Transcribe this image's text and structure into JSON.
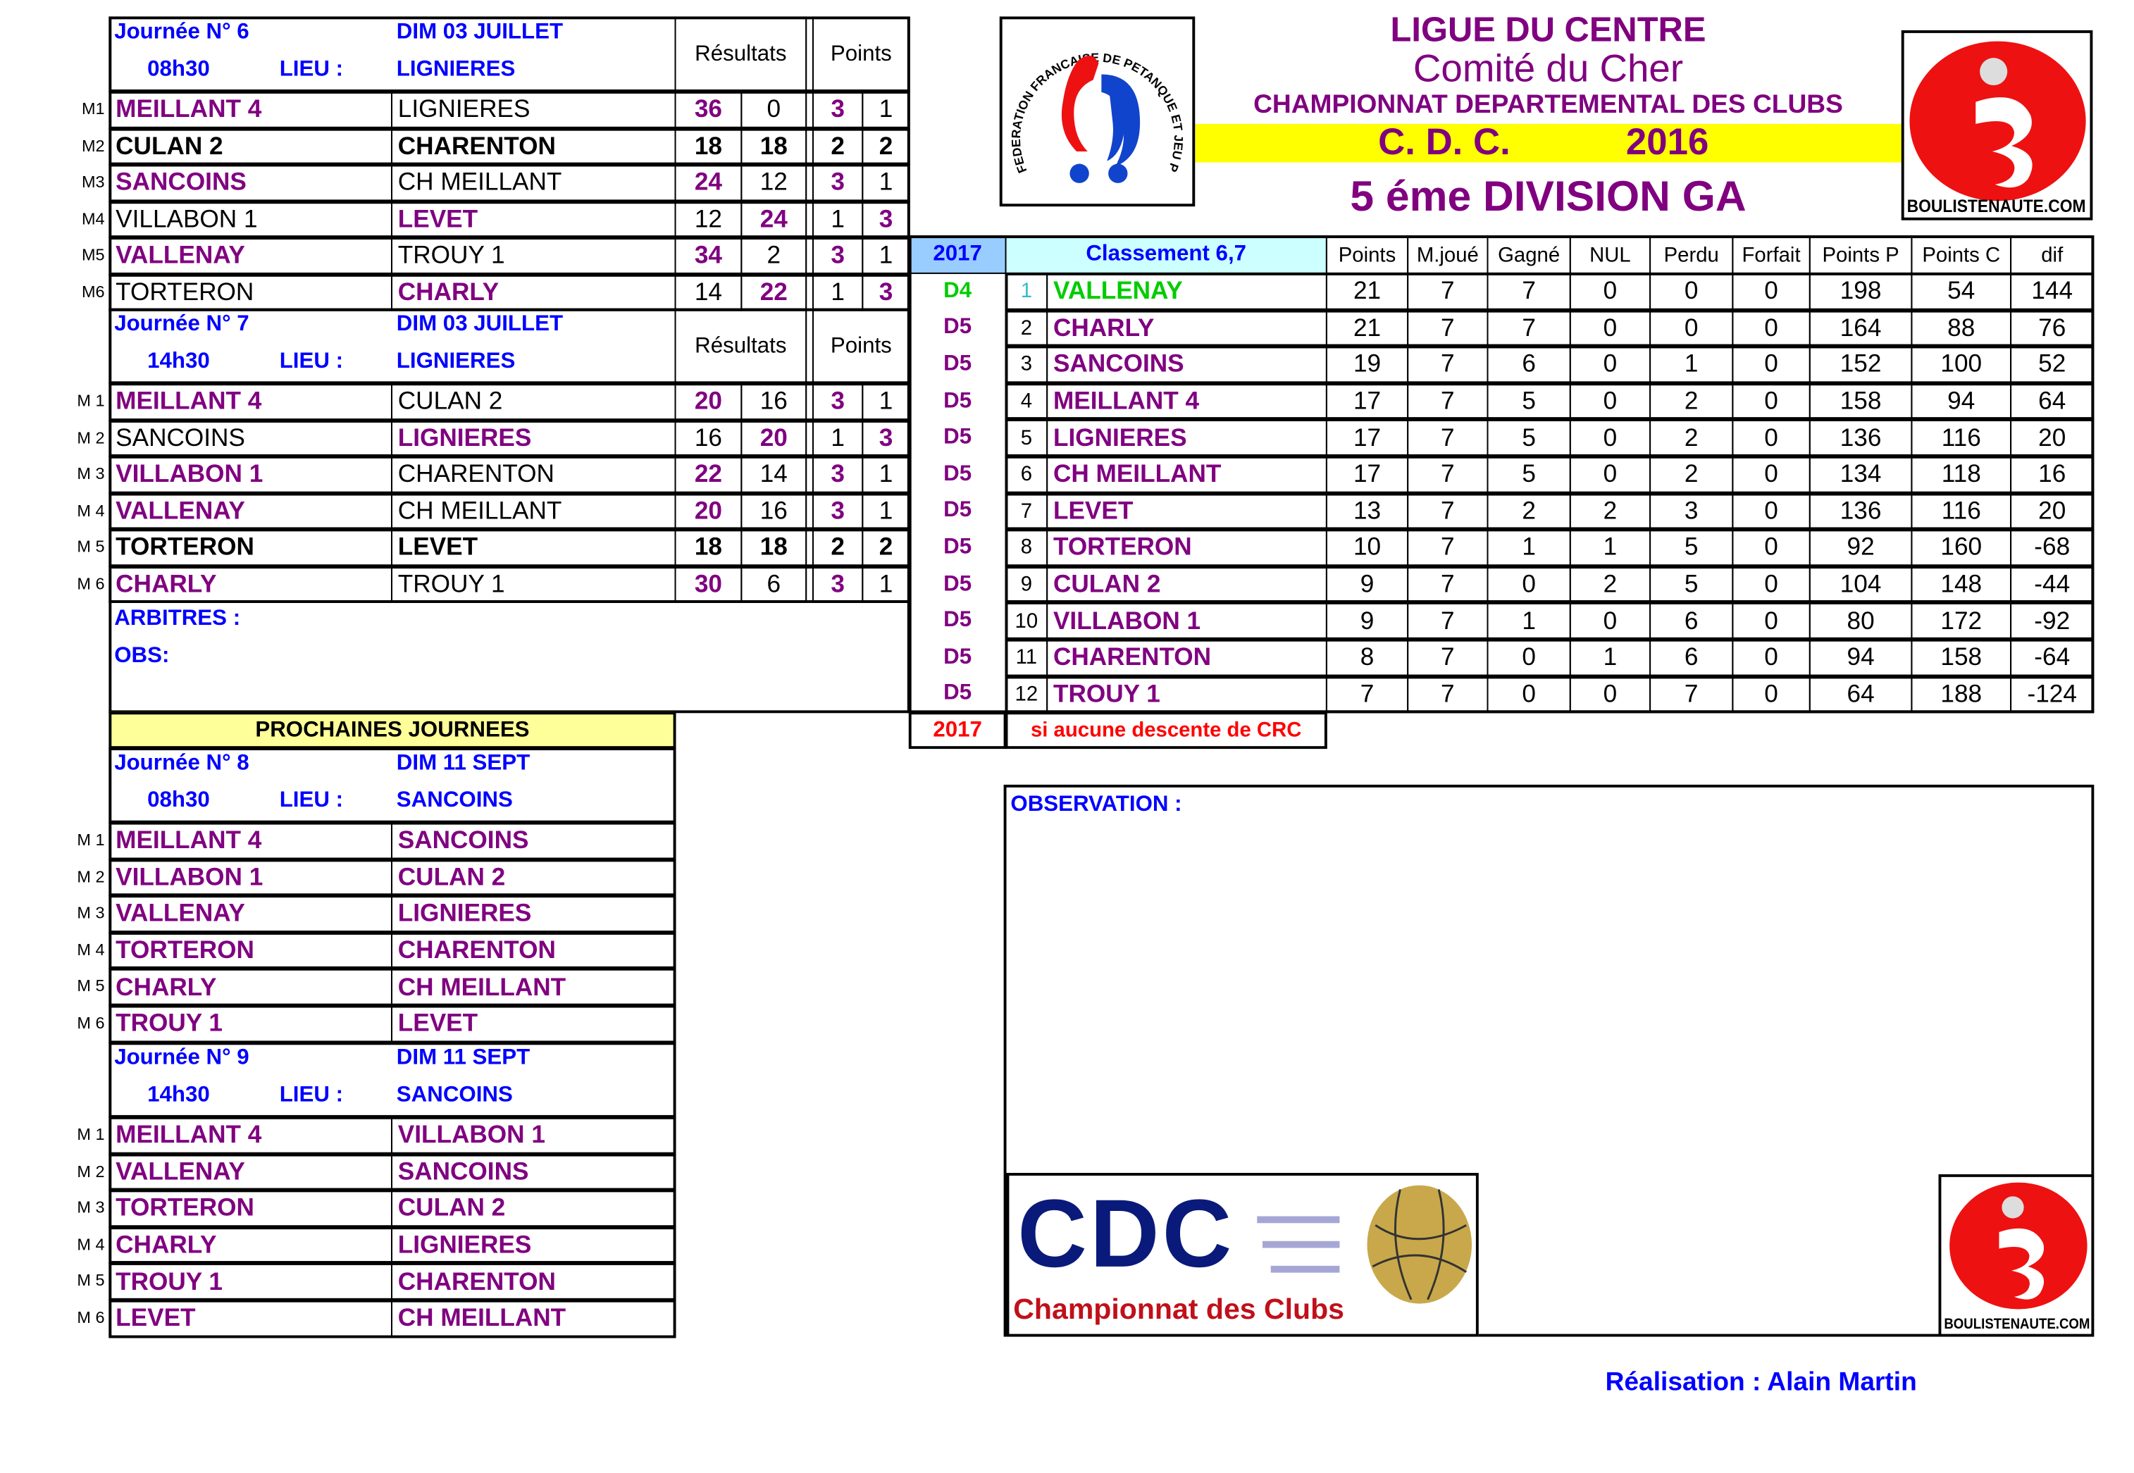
{
  "header": {
    "league": "LIGUE DU CENTRE",
    "committee": "Comité du Cher",
    "championship": "CHAMPIONNAT DEPARTEMENTAL  DES CLUBS",
    "cdc": "C. D. C.",
    "year": "2016",
    "division": "5 éme DIVISION GA",
    "ffpjp_logo_text": "FEDERATION FRANCAISE DE PETANQUE ET JEU PROVENCAL",
    "boulistenaute_logo_text": "BOULISTENAUTE.COM"
  },
  "colors": {
    "purple": "#800080",
    "blue": "#0000ff",
    "green": "#00cc00",
    "red": "#ff0000",
    "yellow": "#ffff00",
    "light_blue": "#99ccff",
    "light_cyan": "#ccffff",
    "light_yellow": "#ffff99"
  },
  "matchdays": [
    {
      "title": "Journée N° 6",
      "date": "DIM 03 JUILLET",
      "time": "08h30",
      "lieu_label": "LIEU :",
      "lieu": "LIGNIERES",
      "results_header": "Résultats",
      "points_header": "Points",
      "matches": [
        {
          "label": "M1",
          "home": "MEILLANT 4",
          "away": "LIGNIERES",
          "score": [
            "36",
            "0"
          ],
          "points": [
            "3",
            "1"
          ],
          "winner": "home"
        },
        {
          "label": "M2",
          "home": "CULAN 2",
          "away": "CHARENTON",
          "score": [
            "18",
            "18"
          ],
          "points": [
            "2",
            "2"
          ],
          "winner": "draw"
        },
        {
          "label": "M3",
          "home": "SANCOINS",
          "away": "CH MEILLANT",
          "score": [
            "24",
            "12"
          ],
          "points": [
            "3",
            "1"
          ],
          "winner": "home"
        },
        {
          "label": "M4",
          "home": "VILLABON 1",
          "away": "LEVET",
          "score": [
            "12",
            "24"
          ],
          "points": [
            "1",
            "3"
          ],
          "winner": "away"
        },
        {
          "label": "M5",
          "home": "VALLENAY",
          "away": "TROUY 1",
          "score": [
            "34",
            "2"
          ],
          "points": [
            "3",
            "1"
          ],
          "winner": "home"
        },
        {
          "label": "M6",
          "home": "TORTERON",
          "away": "CHARLY",
          "score": [
            "14",
            "22"
          ],
          "points": [
            "1",
            "3"
          ],
          "winner": "away"
        }
      ]
    },
    {
      "title": "Journée N° 7",
      "date": "DIM 03 JUILLET",
      "time": "14h30",
      "lieu_label": "LIEU :",
      "lieu": "LIGNIERES",
      "results_header": "Résultats",
      "points_header": "Points",
      "matches": [
        {
          "label": "M 1",
          "home": "MEILLANT 4",
          "away": "CULAN 2",
          "score": [
            "20",
            "16"
          ],
          "points": [
            "3",
            "1"
          ],
          "winner": "home"
        },
        {
          "label": "M 2",
          "home": "SANCOINS",
          "away": "LIGNIERES",
          "score": [
            "16",
            "20"
          ],
          "points": [
            "1",
            "3"
          ],
          "winner": "away"
        },
        {
          "label": "M 3",
          "home": "VILLABON 1",
          "away": "CHARENTON",
          "score": [
            "22",
            "14"
          ],
          "points": [
            "3",
            "1"
          ],
          "winner": "home"
        },
        {
          "label": "M 4",
          "home": "VALLENAY",
          "away": "CH MEILLANT",
          "score": [
            "20",
            "16"
          ],
          "points": [
            "3",
            "1"
          ],
          "winner": "home"
        },
        {
          "label": "M 5",
          "home": "TORTERON",
          "away": "LEVET",
          "score": [
            "18",
            "18"
          ],
          "points": [
            "2",
            "2"
          ],
          "winner": "draw"
        },
        {
          "label": "M 6",
          "home": "CHARLY",
          "away": "TROUY 1",
          "score": [
            "30",
            "6"
          ],
          "points": [
            "3",
            "1"
          ],
          "winner": "home"
        }
      ]
    }
  ],
  "arbitres_label": "ARBITRES :",
  "obs_label": "OBS:",
  "upcoming_title": "PROCHAINES JOURNEES",
  "upcoming": [
    {
      "title": "Journée N° 8",
      "date": "DIM 11 SEPT",
      "time": "08h30",
      "lieu_label": "LIEU :",
      "lieu": "SANCOINS",
      "matches": [
        {
          "label": "M 1",
          "home": "MEILLANT 4",
          "away": "SANCOINS"
        },
        {
          "label": "M 2",
          "home": "VILLABON 1",
          "away": "CULAN 2"
        },
        {
          "label": "M 3",
          "home": "VALLENAY",
          "away": "LIGNIERES"
        },
        {
          "label": "M 4",
          "home": "TORTERON",
          "away": "CHARENTON"
        },
        {
          "label": "M 5",
          "home": "CHARLY",
          "away": "CH MEILLANT"
        },
        {
          "label": "M 6",
          "home": "TROUY 1",
          "away": "LEVET"
        }
      ]
    },
    {
      "title": "Journée N° 9",
      "date": "DIM 11 SEPT",
      "time": "14h30",
      "lieu_label": "LIEU :",
      "lieu": "SANCOINS",
      "matches": [
        {
          "label": "M 1",
          "home": "MEILLANT 4",
          "away": "VILLABON 1"
        },
        {
          "label": "M 2",
          "home": "VALLENAY",
          "away": "SANCOINS"
        },
        {
          "label": "M 3",
          "home": "TORTERON",
          "away": "CULAN 2"
        },
        {
          "label": "M 4",
          "home": "CHARLY",
          "away": "LIGNIERES"
        },
        {
          "label": "M 5",
          "home": "TROUY 1",
          "away": "CHARENTON"
        },
        {
          "label": "M 6",
          "home": "LEVET",
          "away": "CH MEILLANT"
        }
      ]
    }
  ],
  "standings": {
    "year": "2017",
    "title": "Classement 6,7",
    "columns": [
      "Points",
      "M.joué",
      "Gagné",
      "NUL",
      "Perdu",
      "Forfait",
      "Points P",
      "Points C",
      "dif"
    ],
    "rows": [
      {
        "div": "D4",
        "rank": "1",
        "team": "VALLENAY",
        "values": [
          "21",
          "7",
          "7",
          "0",
          "0",
          "0",
          "198",
          "54",
          "144"
        ]
      },
      {
        "div": "D5",
        "rank": "2",
        "team": "CHARLY",
        "values": [
          "21",
          "7",
          "7",
          "0",
          "0",
          "0",
          "164",
          "88",
          "76"
        ]
      },
      {
        "div": "D5",
        "rank": "3",
        "team": "SANCOINS",
        "values": [
          "19",
          "7",
          "6",
          "0",
          "1",
          "0",
          "152",
          "100",
          "52"
        ]
      },
      {
        "div": "D5",
        "rank": "4",
        "team": "MEILLANT 4",
        "values": [
          "17",
          "7",
          "5",
          "0",
          "2",
          "0",
          "158",
          "94",
          "64"
        ]
      },
      {
        "div": "D5",
        "rank": "5",
        "team": "LIGNIERES",
        "values": [
          "17",
          "7",
          "5",
          "0",
          "2",
          "0",
          "136",
          "116",
          "20"
        ]
      },
      {
        "div": "D5",
        "rank": "6",
        "team": "CH MEILLANT",
        "values": [
          "17",
          "7",
          "5",
          "0",
          "2",
          "0",
          "134",
          "118",
          "16"
        ]
      },
      {
        "div": "D5",
        "rank": "7",
        "team": "LEVET",
        "values": [
          "13",
          "7",
          "2",
          "2",
          "3",
          "0",
          "136",
          "116",
          "20"
        ]
      },
      {
        "div": "D5",
        "rank": "8",
        "team": "TORTERON",
        "values": [
          "10",
          "7",
          "1",
          "1",
          "5",
          "0",
          "92",
          "160",
          "-68"
        ]
      },
      {
        "div": "D5",
        "rank": "9",
        "team": "CULAN 2",
        "values": [
          "9",
          "7",
          "0",
          "2",
          "5",
          "0",
          "104",
          "148",
          "-44"
        ]
      },
      {
        "div": "D5",
        "rank": "10",
        "team": "VILLABON 1",
        "values": [
          "9",
          "7",
          "1",
          "0",
          "6",
          "0",
          "80",
          "172",
          "-92"
        ]
      },
      {
        "div": "D5",
        "rank": "11",
        "team": "CHARENTON",
        "values": [
          "8",
          "7",
          "0",
          "1",
          "6",
          "0",
          "94",
          "158",
          "-64"
        ]
      },
      {
        "div": "D5",
        "rank": "12",
        "team": "TROUY 1",
        "values": [
          "7",
          "7",
          "0",
          "0",
          "7",
          "0",
          "64",
          "188",
          "-124"
        ]
      }
    ],
    "footer_year": "2017",
    "footer_note": "si aucune descente de CRC"
  },
  "observation_label": "OBSERVATION :",
  "cdc_logo": {
    "big": "CDC",
    "sub": "Championnat des Clubs"
  },
  "credit": "Réalisation : Alain Martin"
}
